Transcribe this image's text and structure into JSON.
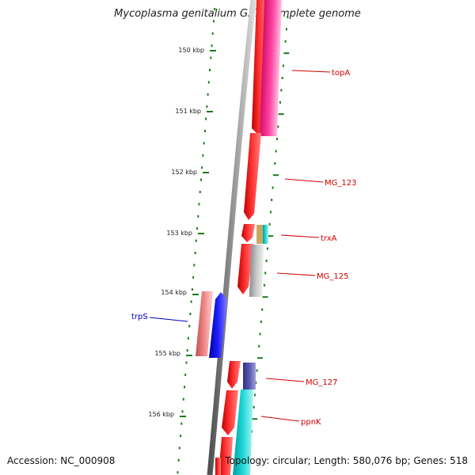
{
  "title": "Mycoplasma genitalium G37, complete genome",
  "footer": {
    "accession": "Accession: NC_000908",
    "summary": "Topology: circular; Length: 580,076 bp; Genes: 518"
  },
  "colors": {
    "tick": "#1b7a1b",
    "backbone": "#808080",
    "red": "#ff1a1a",
    "magenta": "#f0208a",
    "blue": "#1010ff",
    "salmon": "#f08080",
    "cyan": "#10c8c8",
    "grey": "#b8b8b8",
    "navy": "#5050a0",
    "tan": "#c8a860",
    "label_red": "#d00000",
    "label_blue": "#0000c0"
  },
  "ticks": [
    "150 kbp",
    "151 kbp",
    "152 kbp",
    "153 kbp",
    "154 kbp",
    "155 kbp",
    "156 kbp"
  ],
  "genes": [
    {
      "label": "topA"
    },
    {
      "label": "MG_123"
    },
    {
      "label": "trxA"
    },
    {
      "label": "MG_125"
    },
    {
      "label": "trpS"
    },
    {
      "label": "MG_127"
    },
    {
      "label": "ppnK"
    }
  ]
}
